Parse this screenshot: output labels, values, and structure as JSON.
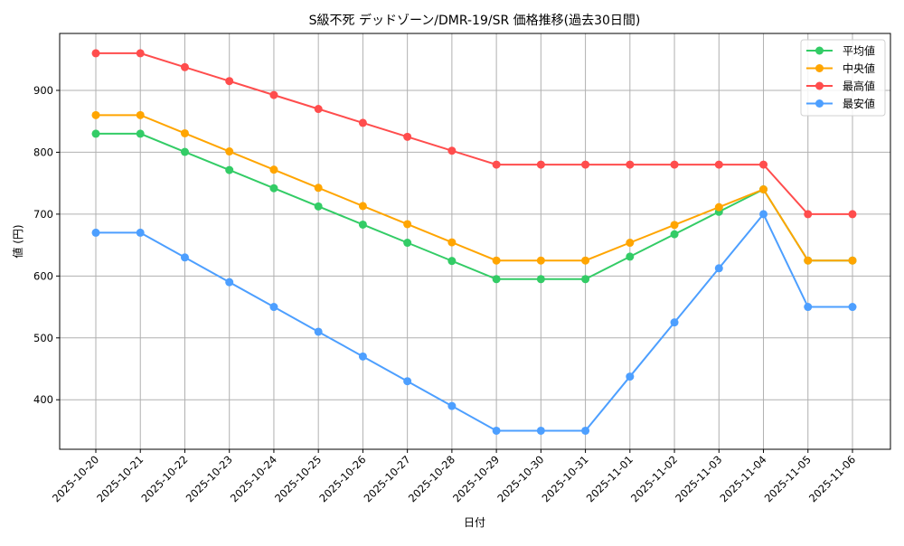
{
  "chart_data": {
    "type": "line",
    "title": "S級不死 デッドゾーン/DMR-19/SR 価格推移(過去30日間)",
    "xlabel": "日付",
    "ylabel": "値 (円)",
    "ylim": [
      320,
      992
    ],
    "yticks": [
      400,
      500,
      600,
      700,
      800,
      900
    ],
    "grid": true,
    "legend_position": "upper right",
    "categories": [
      "2025-10-20",
      "2025-10-21",
      "2025-10-22",
      "2025-10-23",
      "2025-10-24",
      "2025-10-25",
      "2025-10-26",
      "2025-10-27",
      "2025-10-28",
      "2025-10-29",
      "2025-10-30",
      "2025-10-31",
      "2025-11-01",
      "2025-11-02",
      "2025-11-03",
      "2025-11-04",
      "2025-11-05",
      "2025-11-06"
    ],
    "series": [
      {
        "name": "平均値",
        "color": "#33cc66",
        "values": [
          830,
          830,
          800.6,
          771.3,
          741.9,
          712.5,
          683.1,
          653.8,
          624.4,
          595,
          595,
          595,
          631.3,
          667.5,
          703.8,
          740,
          625,
          625
        ]
      },
      {
        "name": "中央値",
        "color": "#ffa500",
        "values": [
          860,
          860,
          830.6,
          801.3,
          771.9,
          742.5,
          713.1,
          683.8,
          654.4,
          625,
          625,
          625,
          653.8,
          682.5,
          711.3,
          740,
          625,
          625
        ]
      },
      {
        "name": "最高値",
        "color": "#ff4d4d",
        "values": [
          960,
          960,
          937.5,
          915,
          892.5,
          870,
          847.5,
          825,
          802.5,
          780,
          780,
          780,
          780,
          780,
          780,
          780,
          700,
          700
        ]
      },
      {
        "name": "最安値",
        "color": "#4d9fff",
        "values": [
          670,
          670,
          630,
          590,
          550,
          510,
          470,
          430,
          390,
          350,
          350,
          350,
          437.5,
          525,
          612.5,
          700,
          550,
          550
        ]
      }
    ]
  }
}
